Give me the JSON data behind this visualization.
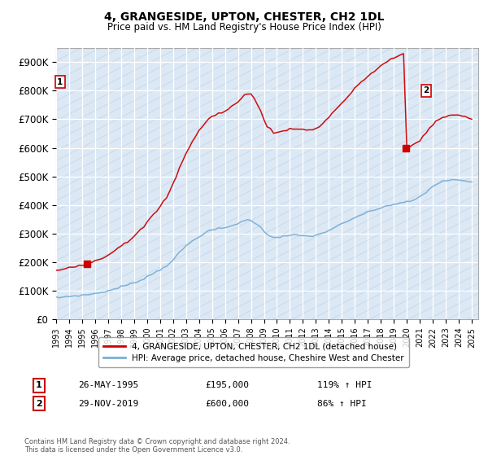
{
  "title": "4, GRANGESIDE, UPTON, CHESTER, CH2 1DL",
  "subtitle": "Price paid vs. HM Land Registry's House Price Index (HPI)",
  "ylim": [
    0,
    950000
  ],
  "yticks": [
    0,
    100000,
    200000,
    300000,
    400000,
    500000,
    600000,
    700000,
    800000,
    900000
  ],
  "ytick_labels": [
    "£0",
    "£100K",
    "£200K",
    "£300K",
    "£400K",
    "£500K",
    "£600K",
    "£700K",
    "£800K",
    "£900K"
  ],
  "xlim_start": 1993,
  "xlim_end": 2025.5,
  "sale1_date": 1995.38,
  "sale1_price": 195000,
  "sale2_date": 2019.91,
  "sale2_price": 600000,
  "line1_color": "#cc0000",
  "line2_color": "#7bafd4",
  "plot_bg_color": "#dce9f5",
  "hatch_color": "#c8d9ec",
  "legend_line1": "4, GRANGESIDE, UPTON, CHESTER, CH2 1DL (detached house)",
  "legend_line2": "HPI: Average price, detached house, Cheshire West and Chester",
  "footer": "Contains HM Land Registry data © Crown copyright and database right 2024.\nThis data is licensed under the Open Government Licence v3.0.",
  "table_row1": [
    "1",
    "26-MAY-1995",
    "£195,000",
    "119% ↑ HPI"
  ],
  "table_row2": [
    "2",
    "29-NOV-2019",
    "£600,000",
    "86% ↑ HPI"
  ],
  "hpi_years": [
    1993.0,
    1993.25,
    1993.5,
    1993.75,
    1994.0,
    1994.25,
    1994.5,
    1994.75,
    1995.0,
    1995.25,
    1995.5,
    1995.75,
    1996.0,
    1996.25,
    1996.5,
    1996.75,
    1997.0,
    1997.25,
    1997.5,
    1997.75,
    1998.0,
    1998.25,
    1998.5,
    1998.75,
    1999.0,
    1999.25,
    1999.5,
    1999.75,
    2000.0,
    2000.25,
    2000.5,
    2000.75,
    2001.0,
    2001.25,
    2001.5,
    2001.75,
    2002.0,
    2002.25,
    2002.5,
    2002.75,
    2003.0,
    2003.25,
    2003.5,
    2003.75,
    2004.0,
    2004.25,
    2004.5,
    2004.75,
    2005.0,
    2005.25,
    2005.5,
    2005.75,
    2006.0,
    2006.25,
    2006.5,
    2006.75,
    2007.0,
    2007.25,
    2007.5,
    2007.75,
    2008.0,
    2008.25,
    2008.5,
    2008.75,
    2009.0,
    2009.25,
    2009.5,
    2009.75,
    2010.0,
    2010.25,
    2010.5,
    2010.75,
    2011.0,
    2011.25,
    2011.5,
    2011.75,
    2012.0,
    2012.25,
    2012.5,
    2012.75,
    2013.0,
    2013.25,
    2013.5,
    2013.75,
    2014.0,
    2014.25,
    2014.5,
    2014.75,
    2015.0,
    2015.25,
    2015.5,
    2015.75,
    2016.0,
    2016.25,
    2016.5,
    2016.75,
    2017.0,
    2017.25,
    2017.5,
    2017.75,
    2018.0,
    2018.25,
    2018.5,
    2018.75,
    2019.0,
    2019.25,
    2019.5,
    2019.75,
    2020.0,
    2020.25,
    2020.5,
    2020.75,
    2021.0,
    2021.25,
    2021.5,
    2021.75,
    2022.0,
    2022.25,
    2022.5,
    2022.75,
    2023.0,
    2023.25,
    2023.5,
    2023.75,
    2024.0,
    2024.25,
    2024.5,
    2024.75,
    2025.0
  ],
  "hpi_values": [
    75000,
    76000,
    77000,
    78500,
    80000,
    81000,
    82000,
    83000,
    84000,
    85000,
    86500,
    88000,
    90000,
    92000,
    94000,
    96500,
    99000,
    102000,
    106000,
    110000,
    114000,
    117000,
    120000,
    123000,
    127000,
    132000,
    137000,
    143000,
    149000,
    155000,
    161000,
    167000,
    173000,
    180000,
    188000,
    197000,
    208000,
    220000,
    233000,
    245000,
    256000,
    265000,
    274000,
    282000,
    290000,
    297000,
    303000,
    308000,
    312000,
    315000,
    317000,
    318000,
    320000,
    323000,
    327000,
    331000,
    336000,
    341000,
    345000,
    347000,
    346000,
    340000,
    331000,
    320000,
    308000,
    298000,
    292000,
    288000,
    287000,
    288000,
    290000,
    292000,
    293000,
    294000,
    294000,
    293000,
    292000,
    291000,
    291000,
    292000,
    294000,
    297000,
    301000,
    306000,
    311000,
    317000,
    323000,
    328000,
    333000,
    338000,
    343000,
    349000,
    355000,
    361000,
    366000,
    370000,
    374000,
    378000,
    382000,
    386000,
    390000,
    394000,
    397000,
    400000,
    402000,
    404000,
    406000,
    408000,
    410000,
    413000,
    417000,
    422000,
    428000,
    436000,
    445000,
    456000,
    465000,
    472000,
    478000,
    482000,
    485000,
    487000,
    488000,
    488000,
    487000,
    485000,
    483000,
    481000,
    479000
  ]
}
